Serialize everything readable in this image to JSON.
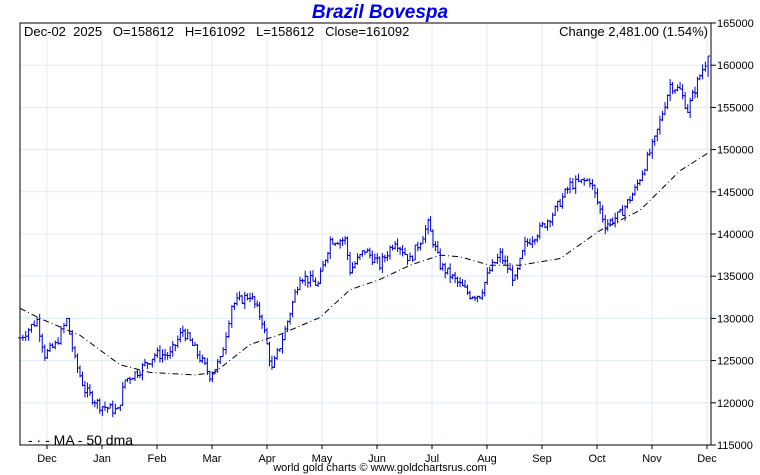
{
  "chart_data": {
    "type": "ohlc",
    "title": "Brazil Bovespa",
    "header": {
      "date": "Dec-02",
      "year": "2025",
      "open": "O=158612",
      "high": "H=161092",
      "low": "L=158612",
      "close": "Close=161092",
      "change": "Change 2,481.00 (1.54%)"
    },
    "x_unit": "months since Dec 2024",
    "xticks": [
      "Dec",
      "Jan",
      "Feb",
      "Mar",
      "Apr",
      "May",
      "Jun",
      "Jul",
      "Aug",
      "Sep",
      "Oct",
      "Nov",
      "Dec"
    ],
    "yticks": [
      115000,
      120000,
      125000,
      130000,
      135000,
      140000,
      145000,
      150000,
      155000,
      160000,
      165000
    ],
    "ylim": [
      115000,
      165000
    ],
    "grid": true,
    "price_series": {
      "name": "Bovespa",
      "color": "#0000cc",
      "points": [
        [
          -0.49,
          127700
        ],
        [
          -0.18,
          129800
        ],
        [
          -0.04,
          125700
        ],
        [
          0.15,
          126800
        ],
        [
          0.36,
          129800
        ],
        [
          0.51,
          125000
        ],
        [
          0.69,
          121500
        ],
        [
          0.96,
          119700
        ],
        [
          1.29,
          119000
        ],
        [
          1.42,
          122700
        ],
        [
          1.69,
          123900
        ],
        [
          1.96,
          125700
        ],
        [
          2.24,
          125700
        ],
        [
          2.47,
          128600
        ],
        [
          2.69,
          126300
        ],
        [
          2.96,
          123300
        ],
        [
          3.15,
          125000
        ],
        [
          3.36,
          131600
        ],
        [
          3.69,
          132800
        ],
        [
          3.91,
          129800
        ],
        [
          4.09,
          123900
        ],
        [
          4.33,
          128600
        ],
        [
          4.6,
          135100
        ],
        [
          4.93,
          134000
        ],
        [
          5.15,
          139300
        ],
        [
          5.42,
          139300
        ],
        [
          5.51,
          135700
        ],
        [
          5.78,
          138100
        ],
        [
          6.05,
          136300
        ],
        [
          6.33,
          139300
        ],
        [
          6.6,
          136900
        ],
        [
          6.93,
          141100
        ],
        [
          7.15,
          136300
        ],
        [
          7.42,
          134500
        ],
        [
          7.69,
          132800
        ],
        [
          7.87,
          132800
        ],
        [
          8.05,
          135700
        ],
        [
          8.24,
          137500
        ],
        [
          8.51,
          134500
        ],
        [
          8.69,
          138700
        ],
        [
          8.96,
          140500
        ],
        [
          9.24,
          142800
        ],
        [
          9.51,
          145800
        ],
        [
          9.87,
          146400
        ],
        [
          10.15,
          141100
        ],
        [
          10.42,
          142300
        ],
        [
          10.69,
          145200
        ],
        [
          11.05,
          151100
        ],
        [
          11.33,
          157700
        ],
        [
          11.51,
          157000
        ],
        [
          11.65,
          154700
        ],
        [
          11.87,
          158800
        ],
        [
          12.02,
          161092
        ]
      ]
    },
    "ma_series": {
      "name": "MA - 50 dma",
      "color": "#000000",
      "points": [
        [
          -0.49,
          131200
        ],
        [
          -0.13,
          130000
        ],
        [
          0.6,
          128000
        ],
        [
          1.33,
          124500
        ],
        [
          1.87,
          123600
        ],
        [
          2.69,
          123300
        ],
        [
          3.05,
          123600
        ],
        [
          3.69,
          126900
        ],
        [
          4.24,
          128100
        ],
        [
          4.96,
          130100
        ],
        [
          5.51,
          133400
        ],
        [
          6.05,
          134600
        ],
        [
          6.6,
          136300
        ],
        [
          7.15,
          137500
        ],
        [
          7.51,
          137300
        ],
        [
          8.05,
          136300
        ],
        [
          8.6,
          136300
        ],
        [
          9.33,
          137100
        ],
        [
          10.05,
          140400
        ],
        [
          10.78,
          142800
        ],
        [
          11.51,
          147500
        ],
        [
          12.02,
          149600
        ]
      ]
    },
    "footer": "world gold charts © www.goldchartsrus.com"
  }
}
